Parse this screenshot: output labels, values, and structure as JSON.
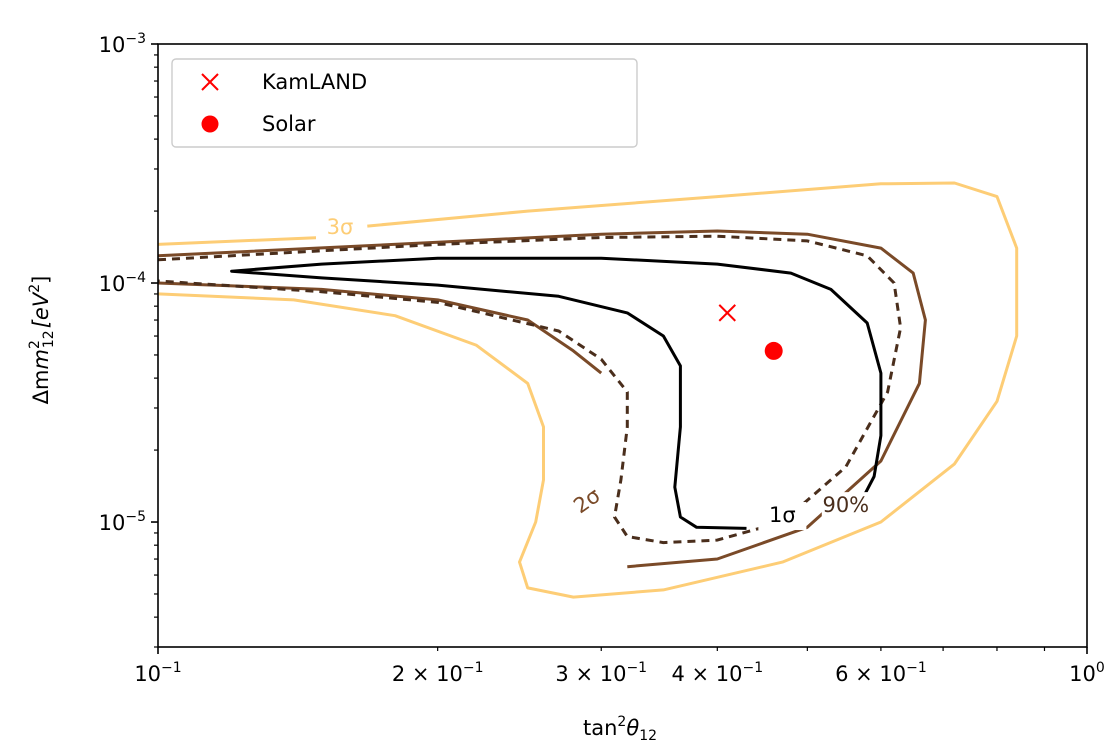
{
  "chart_data": {
    "type": "line",
    "x_scale": "log",
    "y_scale": "log",
    "xlim": [
      0.1,
      1.0
    ],
    "ylim": [
      3e-06,
      0.001
    ],
    "xlabel_main": "tan",
    "xlabel_sup": "2",
    "xlabel_theta": "θ",
    "xlabel_sub": "12",
    "ylabel_main": "Δm",
    "ylabel_sup": "2",
    "ylabel_sub": "12",
    "ylabel_unit": "[eV",
    "ylabel_unit_sup": "2",
    "ylabel_unit_end": "]",
    "x_ticks": [
      {
        "value": 0.1,
        "base": "10",
        "exp": "−1",
        "mult": ""
      },
      {
        "value": 0.2,
        "base": "10",
        "exp": "−1",
        "mult": "2 × "
      },
      {
        "value": 0.3,
        "base": "10",
        "exp": "−1",
        "mult": "3 × "
      },
      {
        "value": 0.4,
        "base": "10",
        "exp": "−1",
        "mult": "4 × "
      },
      {
        "value": 0.6,
        "base": "10",
        "exp": "−1",
        "mult": "6 × "
      },
      {
        "value": 1.0,
        "base": "10",
        "exp": "0",
        "mult": ""
      }
    ],
    "y_ticks": [
      {
        "value": 1e-05,
        "base": "10",
        "exp": "−5"
      },
      {
        "value": 0.0001,
        "base": "10",
        "exp": "−4"
      },
      {
        "value": 0.001,
        "base": "10",
        "exp": "−3"
      }
    ],
    "legend": [
      {
        "label": "KamLAND",
        "marker": "x",
        "color": "#ff0000"
      },
      {
        "label": "Solar",
        "marker": "circle",
        "color": "#ff0000"
      }
    ],
    "legend_position": "upper-left",
    "points": [
      {
        "name": "KamLAND",
        "x": 0.41,
        "y": 7.5e-05,
        "marker": "x",
        "color": "#ff0000"
      },
      {
        "name": "Solar",
        "x": 0.46,
        "y": 5.2e-05,
        "marker": "circle",
        "color": "#ff0000"
      }
    ],
    "contours": [
      {
        "name": "3σ",
        "color": "#fdcd76",
        "dash": "",
        "segments": [
          [
            [
              0.1,
              0.000145
            ],
            [
              0.15,
              0.000155
            ]
          ],
          [
            [
              0.168,
              0.000173
            ],
            [
              0.25,
              0.0002
            ],
            [
              0.4,
              0.00023
            ],
            [
              0.6,
              0.00026
            ],
            [
              0.72,
              0.000262
            ],
            [
              0.8,
              0.00023
            ],
            [
              0.84,
              0.00014
            ],
            [
              0.84,
              6e-05
            ],
            [
              0.8,
              3.2e-05
            ],
            [
              0.72,
              1.75e-05
            ],
            [
              0.6,
              1e-05
            ],
            [
              0.47,
              6.8e-06
            ],
            [
              0.35,
              5.2e-06
            ],
            [
              0.28,
              4.85e-06
            ],
            [
              0.25,
              5.3e-06
            ],
            [
              0.245,
              6.8e-06
            ],
            [
              0.255,
              1e-05
            ],
            [
              0.26,
              1.5e-05
            ],
            [
              0.26,
              2.5e-05
            ],
            [
              0.25,
              3.8e-05
            ],
            [
              0.22,
              5.5e-05
            ],
            [
              0.18,
              7.3e-05
            ],
            [
              0.14,
              8.5e-05
            ],
            [
              0.1,
              9e-05
            ]
          ]
        ]
      },
      {
        "name": "2σ",
        "color": "#7a4a28",
        "dash": "",
        "segments": [
          [
            [
              0.1,
              0.00013
            ],
            [
              0.2,
              0.000148
            ],
            [
              0.3,
              0.00016
            ],
            [
              0.4,
              0.000165
            ],
            [
              0.5,
              0.00016
            ],
            [
              0.6,
              0.00014
            ],
            [
              0.65,
              0.00011
            ],
            [
              0.67,
              7e-05
            ],
            [
              0.66,
              3.8e-05
            ],
            [
              0.6,
              1.8e-05
            ],
            [
              0.5,
              9.5e-06
            ],
            [
              0.4,
              7e-06
            ],
            [
              0.32,
              6.5e-06
            ]
          ],
          [
            [
              0.1,
              0.0001
            ],
            [
              0.15,
              9.4e-05
            ],
            [
              0.2,
              8.5e-05
            ],
            [
              0.25,
              7e-05
            ],
            [
              0.28,
              5.2e-05
            ],
            [
              0.3,
              4.2e-05
            ]
          ]
        ]
      },
      {
        "name": "90%",
        "color": "#4a2e1c",
        "dash": "8 6",
        "segments": [
          [
            [
              0.1,
              0.000125
            ],
            [
              0.2,
              0.000145
            ],
            [
              0.3,
              0.000155
            ],
            [
              0.4,
              0.000157
            ],
            [
              0.5,
              0.00015
            ],
            [
              0.58,
              0.00013
            ],
            [
              0.62,
              0.0001
            ],
            [
              0.63,
              6.5e-05
            ],
            [
              0.61,
              3.5e-05
            ],
            [
              0.55,
              1.7e-05
            ],
            [
              0.47,
              1e-05
            ],
            [
              0.4,
              8.4e-06
            ],
            [
              0.35,
              8.2e-06
            ],
            [
              0.32,
              8.7e-06
            ],
            [
              0.31,
              1.05e-05
            ],
            [
              0.315,
              1.5e-05
            ],
            [
              0.32,
              2.5e-05
            ],
            [
              0.32,
              3.5e-05
            ],
            [
              0.3,
              4.8e-05
            ],
            [
              0.27,
              6.3e-05
            ],
            [
              0.2,
              8.3e-05
            ],
            [
              0.15,
              9.2e-05
            ],
            [
              0.1,
              0.000102
            ]
          ]
        ]
      },
      {
        "name": "1σ",
        "color": "#000000",
        "dash": "",
        "segments": [
          [
            [
              0.57,
              1.2e-05
            ],
            [
              0.59,
              1.55e-05
            ],
            [
              0.6,
              2.3e-05
            ],
            [
              0.6,
              4.2e-05
            ],
            [
              0.58,
              6.8e-05
            ],
            [
              0.53,
              9.4e-05
            ],
            [
              0.48,
              0.00011
            ],
            [
              0.4,
              0.00012
            ],
            [
              0.3,
              0.000127
            ],
            [
              0.2,
              0.000127
            ],
            [
              0.15,
              0.00012
            ],
            [
              0.12,
              0.000112
            ],
            [
              0.15,
              0.000105
            ],
            [
              0.2,
              9.8e-05
            ],
            [
              0.27,
              8.8e-05
            ],
            [
              0.32,
              7.5e-05
            ],
            [
              0.35,
              6e-05
            ],
            [
              0.365,
              4.5e-05
            ],
            [
              0.365,
              2.5e-05
            ],
            [
              0.36,
              1.4e-05
            ],
            [
              0.365,
              1.05e-05
            ],
            [
              0.38,
              9.5e-06
            ],
            [
              0.43,
              9.4e-06
            ]
          ]
        ]
      }
    ],
    "contour_labels": [
      {
        "text": "3σ",
        "x": 0.157,
        "y": 0.00016,
        "color": "#fdcd76",
        "rotate": 0
      },
      {
        "text": "2σ",
        "x": 0.29,
        "y": 1.15e-05,
        "color": "#7a4a28",
        "rotate": -35
      },
      {
        "text": "90%",
        "x": 0.55,
        "y": 1.1e-05,
        "color": "#4a2e1c",
        "rotate": 0
      },
      {
        "text": "1σ",
        "x": 0.47,
        "y": 1e-05,
        "color": "#000000",
        "rotate": 0
      }
    ]
  }
}
